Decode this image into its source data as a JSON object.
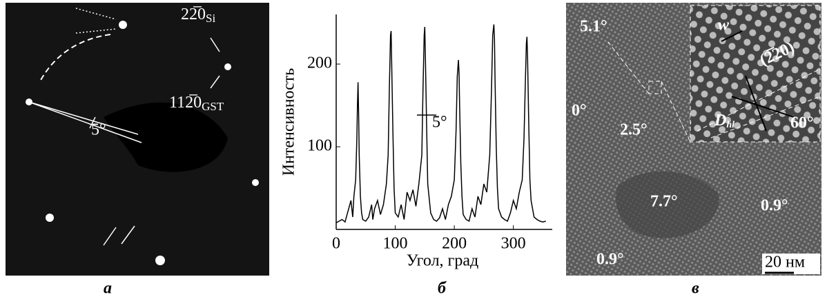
{
  "panel_labels": [
    "а",
    "б",
    "в"
  ],
  "diffraction": {
    "reflex_si": {
      "text": "22̅0",
      "sub": "Si"
    },
    "reflex_gst": {
      "text": "112̅0",
      "sub": "GST"
    },
    "angle": "5°"
  },
  "hrtem": {
    "grain_angles": [
      "5.1°",
      "0°",
      "2.5°",
      "7.7°",
      "0.9°",
      "0.9°"
    ],
    "scale_bar": "20 нм",
    "inset": {
      "width": "w",
      "plane": "(2̅20)",
      "distance": "D",
      "distance_sub": "hl",
      "angle": "60°"
    }
  },
  "chart_data": {
    "type": "line",
    "xlabel": "Угол, град",
    "ylabel": "Интенсивность",
    "annotation": "5°",
    "x": [
      0,
      5,
      10,
      15,
      20,
      25,
      28,
      30,
      33,
      35,
      36,
      37,
      38,
      39,
      41,
      43,
      45,
      50,
      55,
      60,
      62,
      65,
      70,
      75,
      80,
      85,
      88,
      90,
      92,
      93,
      94,
      96,
      98,
      100,
      105,
      110,
      115,
      120,
      125,
      130,
      135,
      140,
      145,
      147,
      149,
      150,
      151,
      153,
      155,
      160,
      165,
      170,
      175,
      180,
      185,
      190,
      195,
      200,
      203,
      205,
      207,
      208,
      209,
      211,
      213,
      215,
      220,
      225,
      230,
      235,
      240,
      245,
      250,
      255,
      260,
      263,
      265,
      267,
      268,
      269,
      271,
      273,
      275,
      280,
      285,
      290,
      295,
      300,
      305,
      310,
      315,
      318,
      320,
      322,
      323,
      324,
      326,
      328,
      330,
      335,
      340,
      345,
      350,
      355
    ],
    "series": [
      {
        "color": "#000000",
        "values": [
          8,
          10,
          12,
          9,
          22,
          35,
          15,
          40,
          60,
          110,
          150,
          178,
          140,
          90,
          40,
          20,
          12,
          10,
          15,
          30,
          12,
          25,
          35,
          18,
          30,
          55,
          90,
          170,
          235,
          240,
          200,
          120,
          50,
          20,
          15,
          30,
          12,
          45,
          35,
          48,
          28,
          55,
          90,
          170,
          235,
          245,
          210,
          130,
          55,
          20,
          12,
          10,
          14,
          25,
          12,
          30,
          40,
          60,
          120,
          185,
          205,
          190,
          150,
          80,
          40,
          18,
          12,
          10,
          25,
          15,
          40,
          30,
          55,
          45,
          90,
          170,
          235,
          248,
          230,
          180,
          100,
          50,
          25,
          15,
          12,
          10,
          20,
          35,
          25,
          45,
          60,
          110,
          170,
          225,
          233,
          210,
          130,
          60,
          35,
          15,
          12,
          10,
          9,
          10
        ]
      }
    ],
    "xlim": [
      0,
      360
    ],
    "ylim": [
      0,
      260
    ],
    "xticks": [
      0,
      100,
      200,
      300
    ],
    "yticks": [
      100,
      200
    ]
  }
}
